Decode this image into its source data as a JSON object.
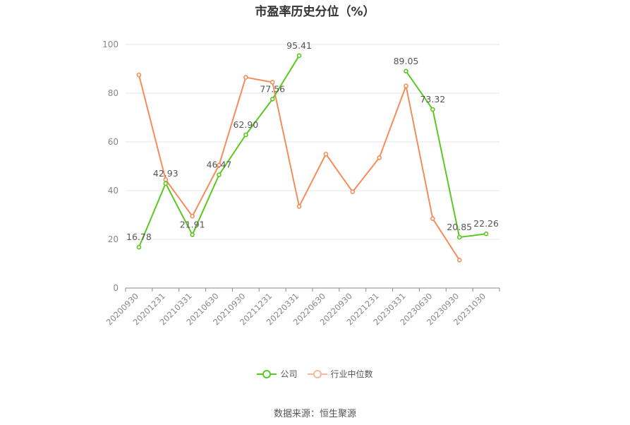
{
  "chart_data": {
    "type": "line",
    "title": "市盈率历史分位（%）",
    "categories": [
      "20200930",
      "20201231",
      "20210331",
      "20210630",
      "20210930",
      "20211231",
      "20220331",
      "20220630",
      "20220930",
      "20221231",
      "20230331",
      "20230630",
      "20230930",
      "20231030"
    ],
    "ylim": [
      0,
      100
    ],
    "yticks": [
      0,
      20,
      40,
      60,
      80,
      100
    ],
    "grid": true,
    "legend_position": "bottom",
    "series": [
      {
        "name": "公司",
        "color": "#5ac820",
        "values": [
          16.78,
          42.93,
          21.91,
          46.47,
          62.9,
          77.56,
          95.41,
          null,
          null,
          null,
          89.05,
          73.32,
          20.85,
          22.26
        ],
        "labels": [
          "16.78",
          "42.93",
          "21.91",
          "46.47",
          "62.90",
          "77.56",
          "95.41",
          null,
          null,
          null,
          "89.05",
          "73.32",
          "20.85",
          "22.26"
        ]
      },
      {
        "name": "行业中位数",
        "color": "#f58c5a",
        "values": [
          87.5,
          44.5,
          29.5,
          50.5,
          86.5,
          84.5,
          33.5,
          55.0,
          39.5,
          53.5,
          83.0,
          28.5,
          11.5,
          null
        ]
      }
    ]
  },
  "footer": {
    "source": "数据来源：恒生聚源"
  }
}
